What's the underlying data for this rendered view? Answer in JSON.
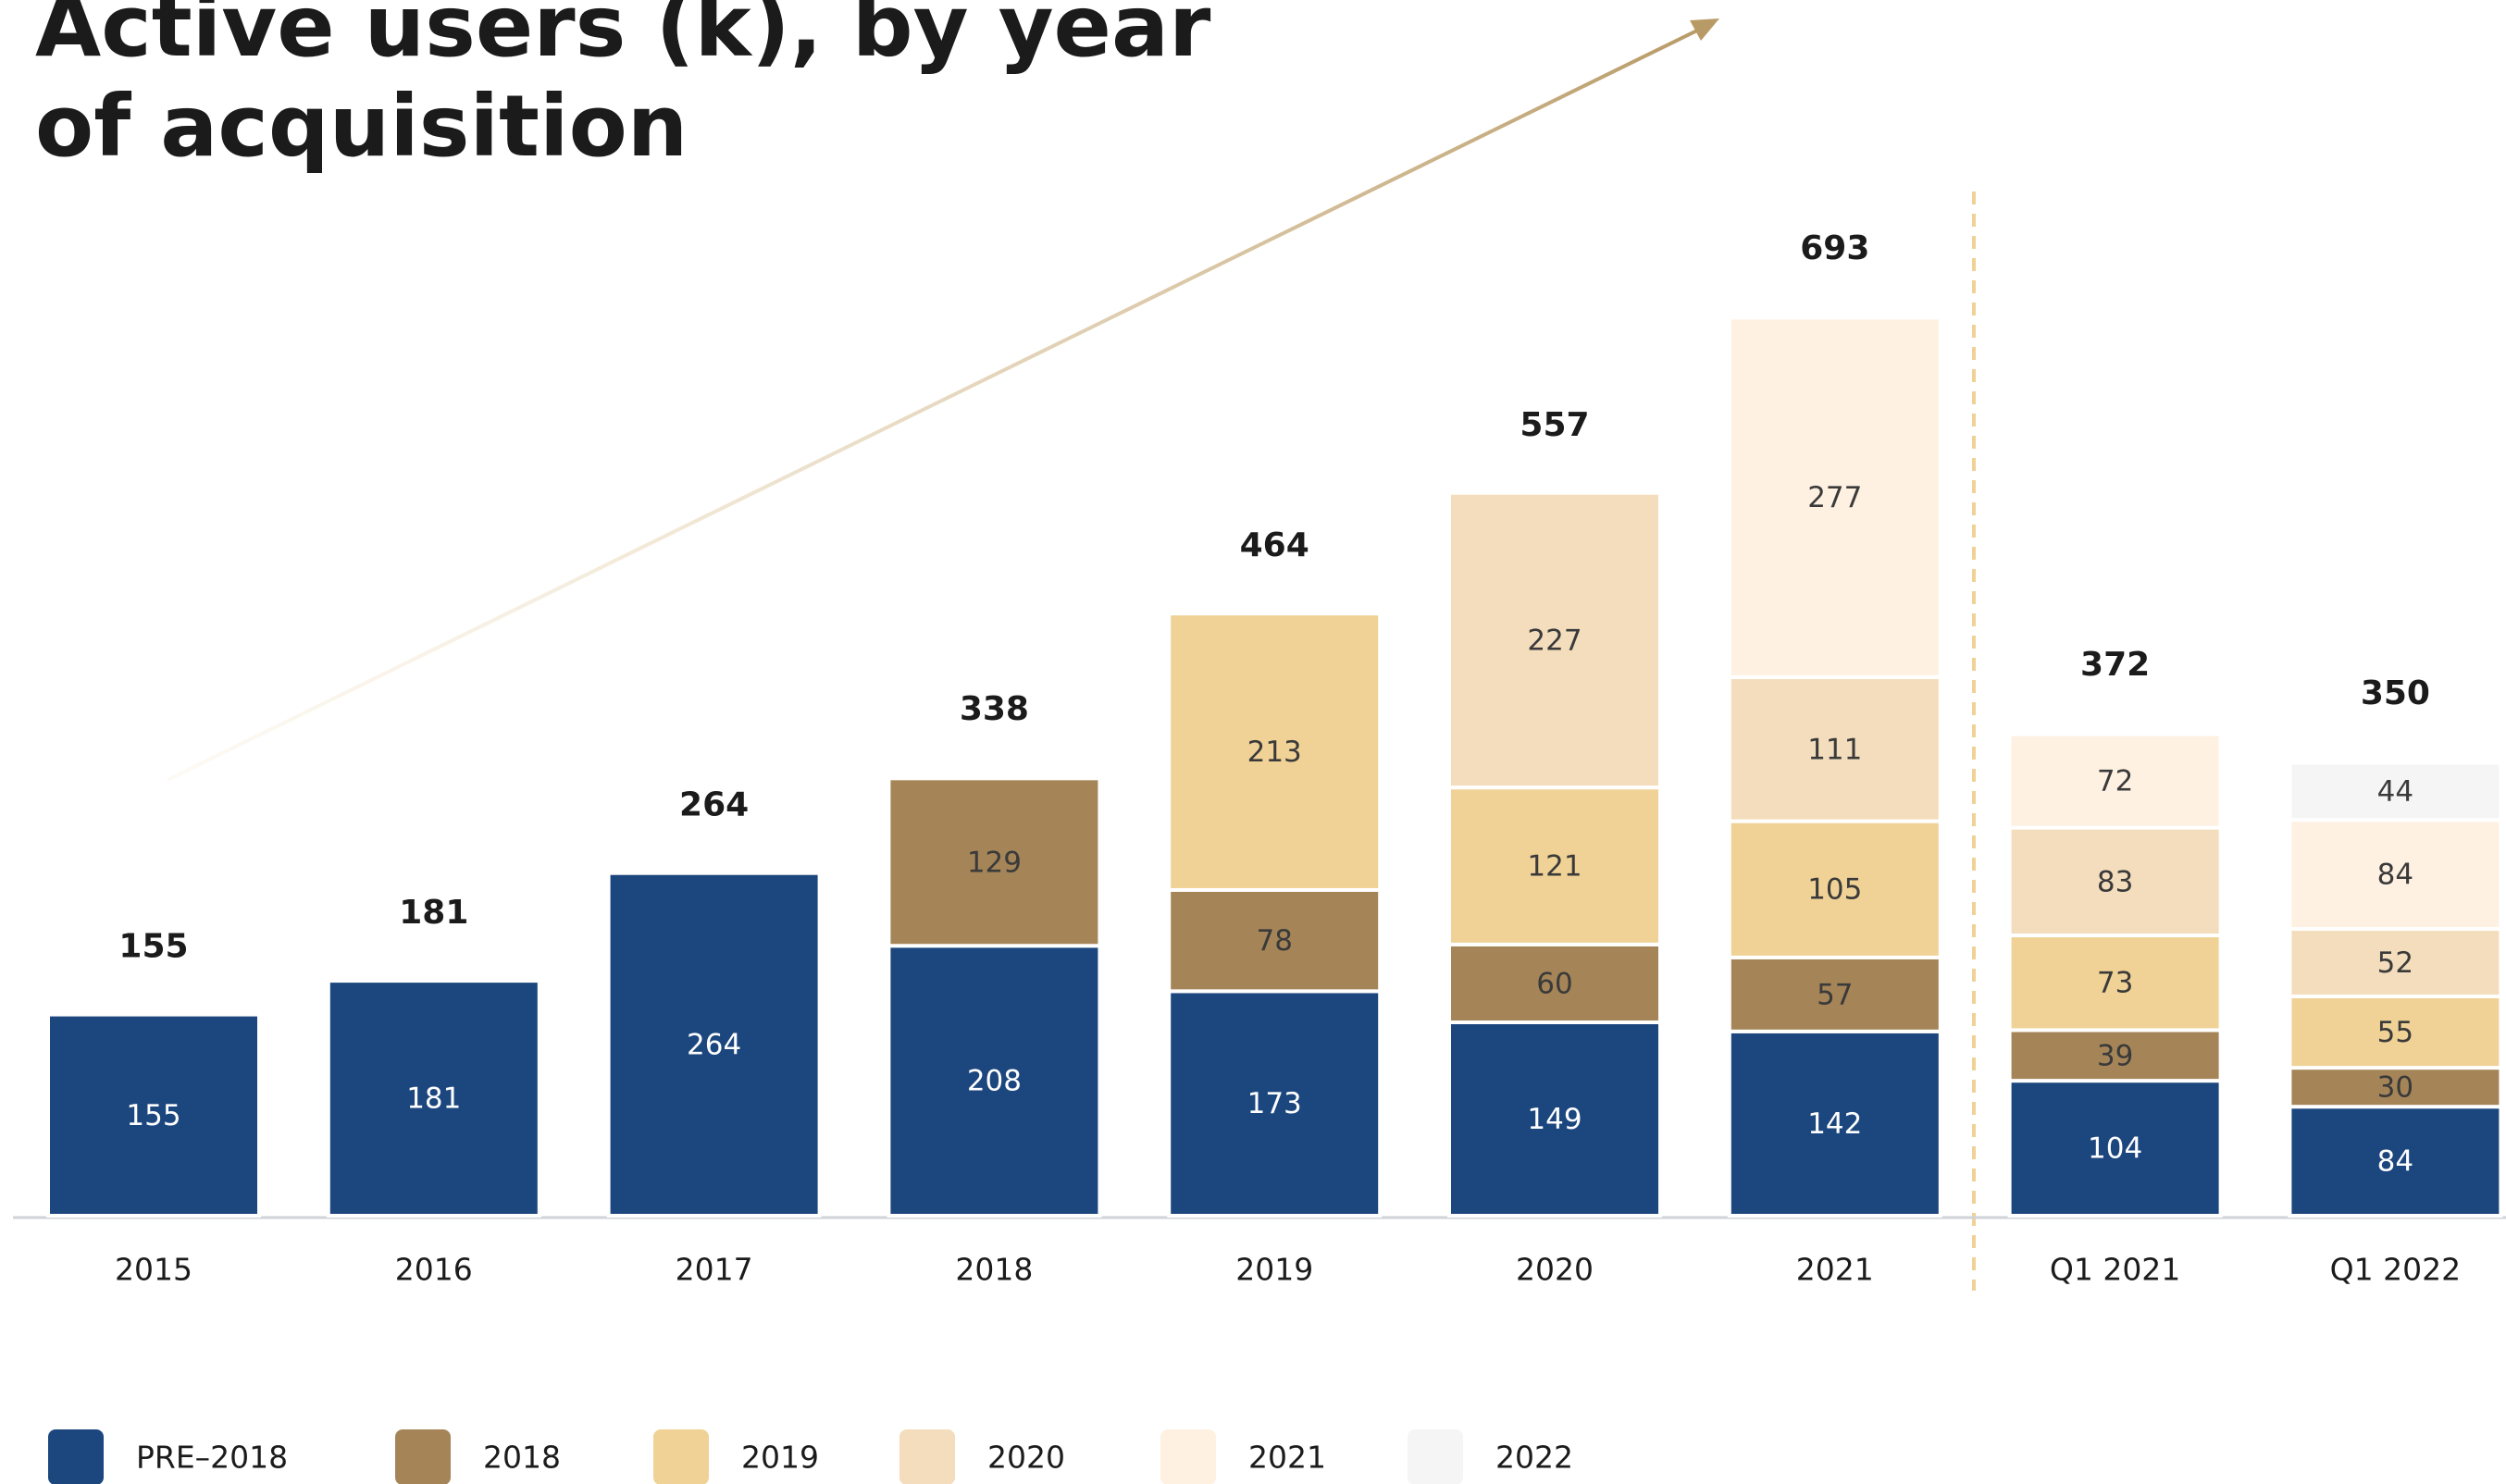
{
  "chart_data": {
    "type": "stacked-bar",
    "title": [
      "Active users (k), by year",
      "of acquisition"
    ],
    "categories": [
      "2015",
      "2016",
      "2017",
      "2018",
      "2019",
      "2020",
      "2021",
      "Q1 2021",
      "Q1 2022"
    ],
    "totals": [
      155,
      181,
      264,
      338,
      464,
      557,
      693,
      372,
      350
    ],
    "series": [
      {
        "name": "PRE–2018",
        "color": "#1c467e",
        "values": [
          155,
          181,
          264,
          208,
          173,
          149,
          142,
          104,
          84
        ]
      },
      {
        "name": "2018",
        "color": "#a58558",
        "values": [
          null,
          null,
          null,
          129,
          78,
          60,
          57,
          39,
          30
        ]
      },
      {
        "name": "2019",
        "color": "#f0d296",
        "values": [
          null,
          null,
          null,
          null,
          213,
          121,
          105,
          73,
          55
        ]
      },
      {
        "name": "2020",
        "color": "#f3ddbc",
        "values": [
          null,
          null,
          null,
          null,
          null,
          227,
          111,
          83,
          52
        ]
      },
      {
        "name": "2021",
        "color": "#fef1e2",
        "values": [
          null,
          null,
          null,
          null,
          null,
          null,
          277,
          72,
          84
        ]
      },
      {
        "name": "2022",
        "color": "#f5f5f5",
        "values": [
          null,
          null,
          null,
          null,
          null,
          null,
          null,
          null,
          44
        ]
      }
    ]
  }
}
